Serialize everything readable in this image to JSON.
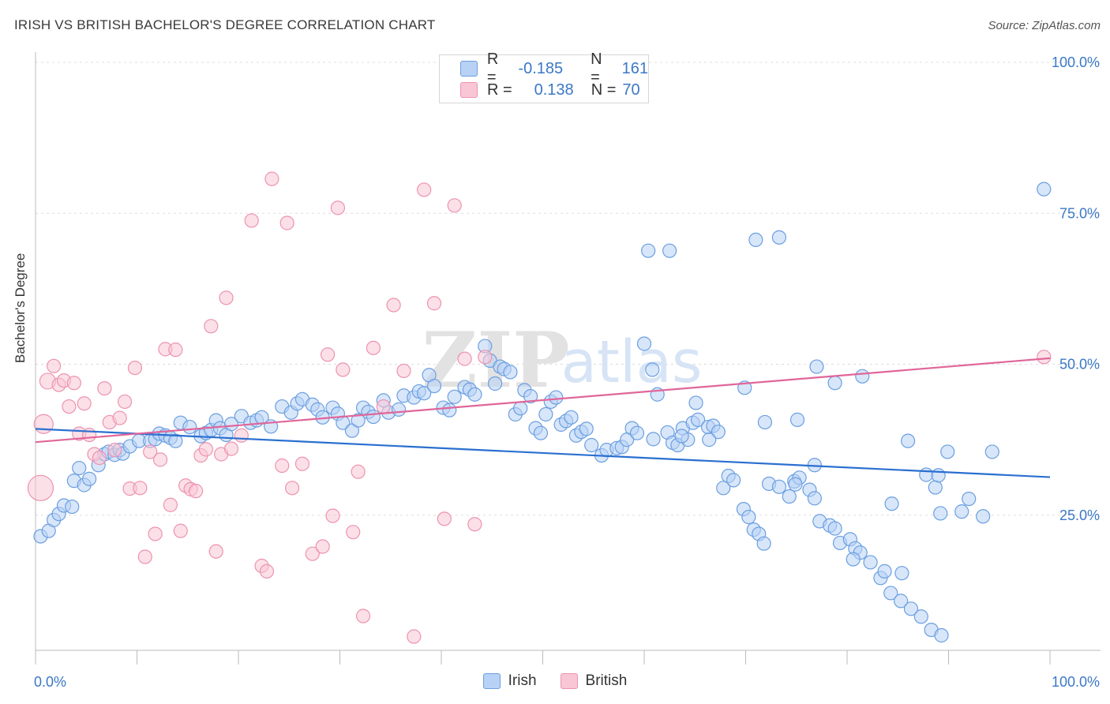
{
  "header": {
    "title": "IRISH VS BRITISH BACHELOR'S DEGREE CORRELATION CHART",
    "source": "Source: ZipAtlas.com"
  },
  "watermark": {
    "zip": "ZIP",
    "atlas": "atlas"
  },
  "legend_top": {
    "rows": [
      {
        "r_label": "R =",
        "r_value": "-0.185",
        "n_label": "N =",
        "n_value": "161",
        "color": "#7aaae8"
      },
      {
        "r_label": "R =",
        "r_value": "0.138",
        "n_label": "N =",
        "n_value": "70",
        "color": "#f0a0bb"
      }
    ]
  },
  "colors": {
    "irish_fill": "#b8d2f5",
    "irish_stroke": "#6b9fe0",
    "irish_line": "#2a6fd0",
    "british_fill": "#f9c6d6",
    "british_stroke": "#ec93b0",
    "british_line": "#e0669a",
    "tick_text": "#3b78c6",
    "grid": "#dddddd"
  },
  "chart_data": {
    "type": "scatter",
    "title": "IRISH VS BRITISH BACHELOR'S DEGREE CORRELATION CHART",
    "xlabel": "",
    "ylabel": "Bachelor's Degree",
    "xlim": [
      0,
      100
    ],
    "ylim": [
      0,
      100
    ],
    "x_tick_labels": [
      "0.0%",
      "100.0%"
    ],
    "y_tick_labels": [
      "25.0%",
      "50.0%",
      "75.0%",
      "100.0%"
    ],
    "y_ticks": [
      25,
      50,
      75,
      100
    ],
    "grid": true,
    "legend": "bottom-center",
    "series": [
      {
        "name": "Irish",
        "r": -0.185,
        "n": 161,
        "trend": {
          "x": [
            0,
            100
          ],
          "y": [
            39.3,
            31.3
          ]
        },
        "points": [
          [
            0.5,
            21.5
          ],
          [
            1.3,
            22.4
          ],
          [
            1.8,
            24.2
          ],
          [
            2.3,
            25.2
          ],
          [
            2.8,
            26.6
          ],
          [
            3.6,
            26.4
          ],
          [
            3.8,
            30.7
          ],
          [
            4.3,
            32.8
          ],
          [
            4.8,
            30.0
          ],
          [
            5.3,
            31.0
          ],
          [
            6.2,
            33.3
          ],
          [
            6.8,
            35.1
          ],
          [
            7.2,
            35.5
          ],
          [
            7.8,
            35.0
          ],
          [
            8.3,
            35.8
          ],
          [
            8.6,
            35.2
          ],
          [
            9.3,
            36.4
          ],
          [
            10.2,
            37.3
          ],
          [
            11.3,
            37.3
          ],
          [
            11.8,
            37.6
          ],
          [
            12.2,
            38.5
          ],
          [
            12.8,
            38.2
          ],
          [
            13.3,
            37.8
          ],
          [
            13.8,
            37.3
          ],
          [
            14.3,
            40.3
          ],
          [
            15.2,
            39.6
          ],
          [
            16.3,
            38.1
          ],
          [
            16.8,
            38.6
          ],
          [
            17.3,
            39.1
          ],
          [
            17.8,
            40.7
          ],
          [
            18.2,
            39.4
          ],
          [
            18.8,
            38.3
          ],
          [
            19.3,
            40.1
          ],
          [
            20.3,
            41.4
          ],
          [
            21.2,
            40.3
          ],
          [
            21.8,
            40.7
          ],
          [
            22.3,
            41.2
          ],
          [
            23.2,
            39.7
          ],
          [
            24.3,
            43.0
          ],
          [
            25.2,
            42.0
          ],
          [
            25.8,
            43.5
          ],
          [
            26.3,
            44.2
          ],
          [
            27.3,
            43.3
          ],
          [
            27.8,
            42.5
          ],
          [
            28.3,
            41.2
          ],
          [
            29.3,
            42.8
          ],
          [
            29.8,
            41.8
          ],
          [
            30.3,
            40.3
          ],
          [
            31.2,
            39.0
          ],
          [
            31.8,
            40.7
          ],
          [
            32.3,
            42.8
          ],
          [
            32.8,
            42.1
          ],
          [
            33.3,
            41.3
          ],
          [
            34.3,
            44.0
          ],
          [
            34.8,
            42.0
          ],
          [
            35.8,
            42.5
          ],
          [
            36.3,
            44.8
          ],
          [
            37.3,
            44.5
          ],
          [
            37.8,
            45.5
          ],
          [
            38.3,
            45.2
          ],
          [
            38.8,
            48.2
          ],
          [
            39.3,
            46.4
          ],
          [
            40.2,
            42.8
          ],
          [
            40.8,
            42.4
          ],
          [
            41.3,
            44.6
          ],
          [
            42.3,
            46.2
          ],
          [
            42.8,
            45.8
          ],
          [
            43.3,
            45.0
          ],
          [
            44.3,
            53.0
          ],
          [
            44.8,
            50.6
          ],
          [
            45.3,
            46.8
          ],
          [
            45.8,
            49.6
          ],
          [
            46.2,
            49.2
          ],
          [
            46.8,
            48.7
          ],
          [
            47.3,
            41.7
          ],
          [
            47.8,
            42.7
          ],
          [
            48.2,
            45.7
          ],
          [
            48.8,
            44.7
          ],
          [
            49.3,
            39.4
          ],
          [
            49.8,
            38.6
          ],
          [
            50.3,
            41.7
          ],
          [
            50.8,
            43.8
          ],
          [
            51.3,
            44.5
          ],
          [
            51.8,
            40.0
          ],
          [
            52.3,
            40.6
          ],
          [
            52.8,
            41.2
          ],
          [
            53.3,
            38.2
          ],
          [
            53.8,
            38.8
          ],
          [
            54.3,
            39.3
          ],
          [
            54.8,
            36.6
          ],
          [
            55.8,
            34.9
          ],
          [
            56.3,
            35.8
          ],
          [
            57.3,
            36.1
          ],
          [
            57.8,
            36.3
          ],
          [
            58.3,
            37.5
          ],
          [
            58.8,
            39.4
          ],
          [
            59.3,
            38.6
          ],
          [
            60.0,
            53.4
          ],
          [
            60.8,
            49.1
          ],
          [
            61.3,
            45.0
          ],
          [
            62.3,
            38.7
          ],
          [
            62.8,
            37.0
          ],
          [
            63.3,
            36.6
          ],
          [
            63.8,
            39.4
          ],
          [
            64.3,
            37.5
          ],
          [
            64.8,
            40.3
          ],
          [
            65.3,
            40.8
          ],
          [
            66.3,
            39.6
          ],
          [
            66.8,
            39.8
          ],
          [
            67.3,
            38.8
          ],
          [
            67.8,
            29.5
          ],
          [
            68.3,
            31.5
          ],
          [
            68.8,
            30.8
          ],
          [
            69.8,
            26.0
          ],
          [
            70.3,
            24.7
          ],
          [
            70.8,
            22.6
          ],
          [
            71.3,
            21.9
          ],
          [
            71.8,
            20.3
          ],
          [
            72.3,
            30.2
          ],
          [
            73.3,
            29.7
          ],
          [
            74.3,
            28.1
          ],
          [
            74.8,
            30.6
          ],
          [
            75.3,
            31.2
          ],
          [
            76.3,
            29.2
          ],
          [
            76.8,
            27.8
          ],
          [
            77.3,
            24.0
          ],
          [
            78.3,
            23.3
          ],
          [
            78.8,
            22.8
          ],
          [
            79.3,
            20.4
          ],
          [
            80.3,
            21.0
          ],
          [
            80.8,
            19.5
          ],
          [
            81.3,
            18.8
          ],
          [
            82.3,
            17.2
          ],
          [
            83.3,
            14.6
          ],
          [
            84.3,
            12.1
          ],
          [
            85.3,
            10.8
          ],
          [
            86.3,
            9.5
          ],
          [
            87.3,
            8.2
          ],
          [
            88.3,
            6.0
          ],
          [
            89.3,
            5.1
          ],
          [
            60.4,
            68.8
          ],
          [
            62.5,
            68.8
          ],
          [
            71.0,
            70.6
          ],
          [
            73.3,
            71.0
          ],
          [
            77.0,
            49.6
          ],
          [
            78.8,
            46.9
          ],
          [
            81.5,
            48.0
          ],
          [
            69.9,
            46.1
          ],
          [
            65.1,
            43.6
          ],
          [
            71.9,
            40.4
          ],
          [
            75.1,
            40.8
          ],
          [
            60.9,
            37.6
          ],
          [
            63.7,
            38.1
          ],
          [
            66.4,
            37.5
          ],
          [
            86.0,
            37.3
          ],
          [
            76.8,
            33.3
          ],
          [
            74.9,
            30.1
          ],
          [
            92.0,
            27.7
          ],
          [
            89.2,
            25.3
          ],
          [
            80.6,
            17.7
          ],
          [
            83.7,
            15.7
          ],
          [
            85.4,
            15.4
          ],
          [
            99.4,
            79.0
          ],
          [
            93.4,
            24.8
          ],
          [
            91.3,
            25.6
          ],
          [
            87.8,
            31.7
          ],
          [
            89.9,
            35.5
          ],
          [
            88.7,
            29.6
          ],
          [
            84.4,
            26.9
          ],
          [
            89.0,
            31.6
          ],
          [
            94.3,
            35.5
          ]
        ]
      },
      {
        "name": "British",
        "r": 0.138,
        "n": 70,
        "trend": {
          "x": [
            0,
            100
          ],
          "y": [
            37.1,
            51.0
          ]
        },
        "points": [
          [
            0.5,
            29.5
          ],
          [
            0.8,
            40.1
          ],
          [
            1.2,
            47.2
          ],
          [
            1.8,
            49.7
          ],
          [
            2.3,
            46.6
          ],
          [
            2.8,
            47.3
          ],
          [
            3.3,
            43.0
          ],
          [
            3.8,
            46.9
          ],
          [
            4.3,
            38.5
          ],
          [
            4.8,
            43.5
          ],
          [
            5.3,
            38.3
          ],
          [
            5.8,
            35.1
          ],
          [
            6.3,
            34.5
          ],
          [
            6.8,
            46.0
          ],
          [
            7.3,
            40.4
          ],
          [
            7.8,
            35.8
          ],
          [
            8.3,
            41.1
          ],
          [
            8.8,
            43.8
          ],
          [
            9.3,
            29.4
          ],
          [
            9.8,
            49.4
          ],
          [
            10.3,
            29.5
          ],
          [
            10.8,
            18.1
          ],
          [
            11.3,
            35.5
          ],
          [
            11.8,
            21.9
          ],
          [
            12.3,
            34.2
          ],
          [
            12.8,
            52.5
          ],
          [
            13.3,
            26.7
          ],
          [
            13.8,
            52.4
          ],
          [
            14.3,
            22.4
          ],
          [
            14.8,
            29.9
          ],
          [
            15.3,
            29.3
          ],
          [
            15.8,
            29.0
          ],
          [
            16.3,
            34.9
          ],
          [
            16.8,
            35.9
          ],
          [
            17.3,
            56.3
          ],
          [
            17.8,
            19.0
          ],
          [
            18.3,
            35.1
          ],
          [
            18.8,
            61.0
          ],
          [
            19.3,
            36.0
          ],
          [
            20.3,
            38.2
          ],
          [
            21.3,
            73.8
          ],
          [
            22.3,
            16.6
          ],
          [
            22.8,
            15.7
          ],
          [
            23.3,
            80.7
          ],
          [
            24.3,
            33.2
          ],
          [
            24.8,
            73.4
          ],
          [
            25.3,
            29.5
          ],
          [
            26.3,
            33.5
          ],
          [
            27.3,
            18.6
          ],
          [
            28.3,
            19.8
          ],
          [
            28.8,
            51.6
          ],
          [
            29.3,
            24.9
          ],
          [
            29.8,
            75.9
          ],
          [
            30.3,
            49.1
          ],
          [
            31.3,
            22.2
          ],
          [
            31.8,
            32.2
          ],
          [
            32.3,
            8.3
          ],
          [
            33.3,
            52.7
          ],
          [
            34.3,
            43.0
          ],
          [
            35.3,
            59.8
          ],
          [
            36.3,
            48.9
          ],
          [
            37.3,
            4.9
          ],
          [
            38.3,
            78.9
          ],
          [
            39.3,
            60.1
          ],
          [
            40.3,
            24.4
          ],
          [
            41.3,
            76.3
          ],
          [
            42.3,
            50.9
          ],
          [
            43.3,
            23.5
          ],
          [
            44.3,
            51.2
          ],
          [
            99.4,
            51.2
          ]
        ]
      }
    ]
  },
  "bottom_legend": {
    "irish": "Irish",
    "british": "British"
  }
}
